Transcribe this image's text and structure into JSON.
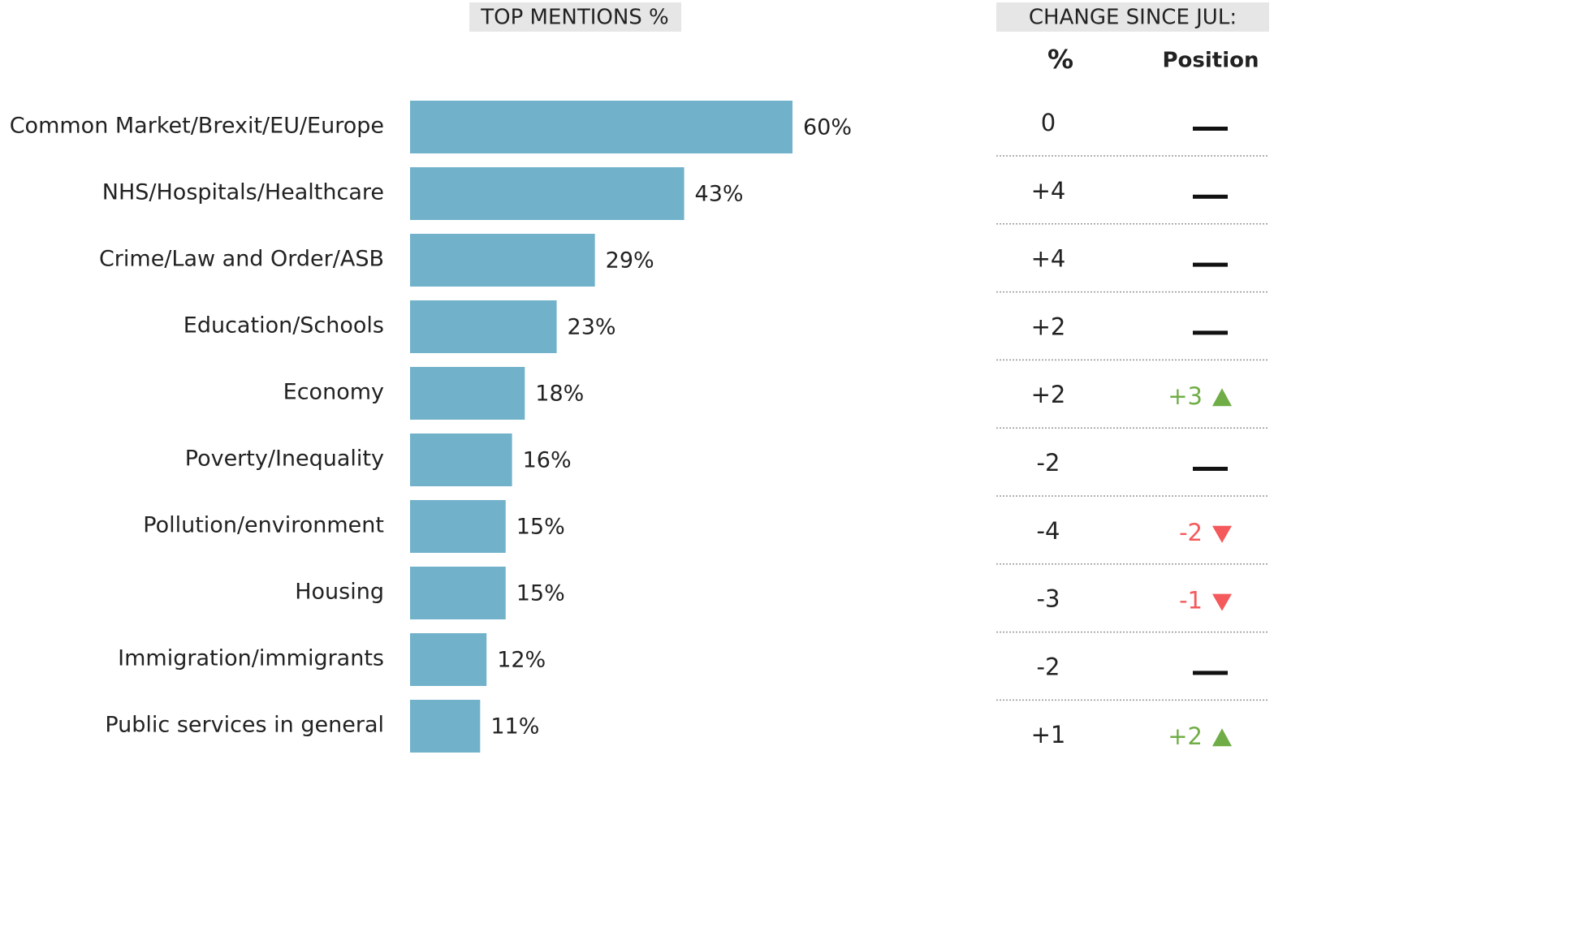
{
  "chart_data": {
    "type": "bar",
    "orientation": "horizontal",
    "title": "TOP MENTIONS %",
    "categories": [
      "Common Market/Brexit/EU/Europe",
      "NHS/Hospitals/Healthcare",
      "Crime/Law and Order/ASB",
      "Education/Schools",
      "Economy",
      "Poverty/Inequality",
      "Pollution/environment",
      "Housing",
      "Immigration/immigrants",
      "Public services in general"
    ],
    "values": [
      60,
      43,
      29,
      23,
      18,
      16,
      15,
      15,
      12,
      11
    ],
    "value_labels": [
      "60%",
      "43%",
      "29%",
      "23%",
      "18%",
      "16%",
      "15%",
      "15%",
      "12%",
      "11%"
    ],
    "color": "#71b2ca"
  },
  "change_table": {
    "title": "CHANGE SINCE JUL:",
    "columns": [
      "%",
      "Position"
    ],
    "rows": [
      [
        "0",
        null
      ],
      [
        "+4",
        null
      ],
      [
        "+4",
        null
      ],
      [
        "+2",
        null
      ],
      [
        "+2",
        "+3"
      ],
      [
        "-2",
        null
      ],
      [
        "-4",
        "-2"
      ],
      [
        "-3",
        "-1"
      ],
      [
        "-2",
        null
      ],
      [
        "+1",
        "+2"
      ]
    ],
    "up_color": "#70ad47",
    "down_color": "#f4595b"
  }
}
